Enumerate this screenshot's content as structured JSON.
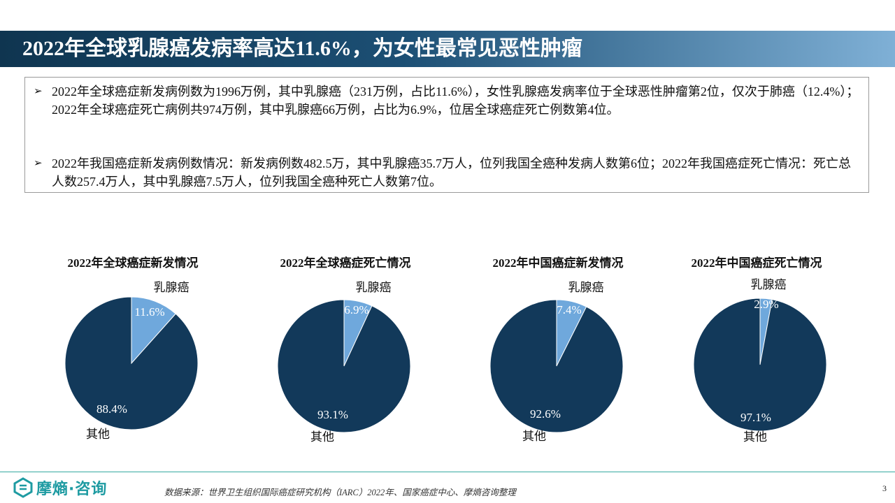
{
  "header": {
    "title": "2022年全球乳腺癌发病率高达11.6%，为女性最常见恶性肿瘤"
  },
  "summary": {
    "bullets": [
      "2022年全球癌症新发病例数为1996万例，其中乳腺癌（231万例，占比11.6%），女性乳腺癌发病率位于全球恶性肿瘤第2位，仅次于肺癌（12.4%）；2022年全球癌症死亡病例共974万例，其中乳腺癌66万例，占比为6.9%，位居全球癌症死亡例数第4位。",
      "2022年我国癌症新发病例数情况：新发病例数482.5万，其中乳腺癌35.7万人，位列我国全癌种发病人数第6位；2022年我国癌症死亡情况：死亡总人数257.4万人，其中乳腺癌7.5万人，位列我国全癌种死亡人数第7位。"
    ]
  },
  "chart_data": [
    {
      "type": "pie",
      "title": "2022年全球癌症新发情况",
      "categories": [
        "乳腺癌",
        "其他"
      ],
      "values": [
        11.6,
        88.4
      ],
      "labels": [
        "11.6%",
        "88.4%"
      ],
      "colors": [
        "#6fa8dc",
        "#12395a"
      ]
    },
    {
      "type": "pie",
      "title": "2022年全球癌症死亡情况",
      "categories": [
        "乳腺癌",
        "其他"
      ],
      "values": [
        6.9,
        93.1
      ],
      "labels": [
        "6.9%",
        "93.1%"
      ],
      "colors": [
        "#6fa8dc",
        "#12395a"
      ]
    },
    {
      "type": "pie",
      "title": "2022年中国癌症新发情况",
      "categories": [
        "乳腺癌",
        "其他"
      ],
      "values": [
        7.4,
        92.6
      ],
      "labels": [
        "7.4%",
        "92.6%"
      ],
      "colors": [
        "#6fa8dc",
        "#12395a"
      ]
    },
    {
      "type": "pie",
      "title": "2022年中国癌症死亡情况",
      "categories": [
        "乳腺癌",
        "其他"
      ],
      "values": [
        2.9,
        97.1
      ],
      "labels": [
        "2.9%",
        "97.1%"
      ],
      "colors": [
        "#6fa8dc",
        "#12395a"
      ]
    }
  ],
  "footer": {
    "logo_text": "摩熵·咨询",
    "logo_icon": "hexagon-logo-icon",
    "source": "数据来源：世界卫生组织国际癌症研究机构（IARC）2022年、国家癌症中心、摩熵咨询整理",
    "page_number": "3"
  }
}
